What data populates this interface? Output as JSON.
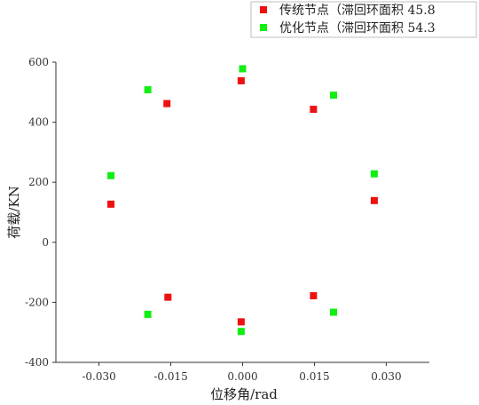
{
  "chart_data": {
    "type": "scatter",
    "xlabel": "位移角/rad",
    "ylabel": "荷载/KN",
    "xlim": [
      -0.039,
      0.039
    ],
    "ylim": [
      -400,
      600
    ],
    "xticks": [
      -0.03,
      -0.015,
      0.0,
      0.015,
      0.03
    ],
    "xtick_labels": [
      "-0.030",
      "-0.015",
      "0.000",
      "0.015",
      "0.030"
    ],
    "yticks": [
      -400,
      -200,
      0,
      200,
      400,
      600
    ],
    "ytick_labels": [
      "-400",
      "-200",
      "0",
      "200",
      "400",
      "600"
    ],
    "grid": false,
    "legend_position": "top-right",
    "series": [
      {
        "name": "传统节点（滞回环面积 45.8",
        "color": "#ee1111",
        "marker": "square",
        "points": [
          {
            "x": -0.0275,
            "y": 127
          },
          {
            "x": -0.0158,
            "y": 462
          },
          {
            "x": -0.0003,
            "y": 538
          },
          {
            "x": 0.0148,
            "y": 443
          },
          {
            "x": 0.0275,
            "y": 139
          },
          {
            "x": 0.0148,
            "y": -178
          },
          {
            "x": -0.0003,
            "y": -265
          },
          {
            "x": -0.0156,
            "y": -183
          }
        ]
      },
      {
        "name": "优化节点（滞回环面积 54.3",
        "color": "#11ee11",
        "marker": "square",
        "points": [
          {
            "x": -0.0275,
            "y": 222
          },
          {
            "x": -0.0198,
            "y": 508
          },
          {
            "x": 0.0,
            "y": 578
          },
          {
            "x": 0.019,
            "y": 490
          },
          {
            "x": 0.0275,
            "y": 228
          },
          {
            "x": 0.019,
            "y": -233
          },
          {
            "x": -0.0003,
            "y": -297
          },
          {
            "x": -0.0198,
            "y": -240
          }
        ]
      }
    ]
  }
}
